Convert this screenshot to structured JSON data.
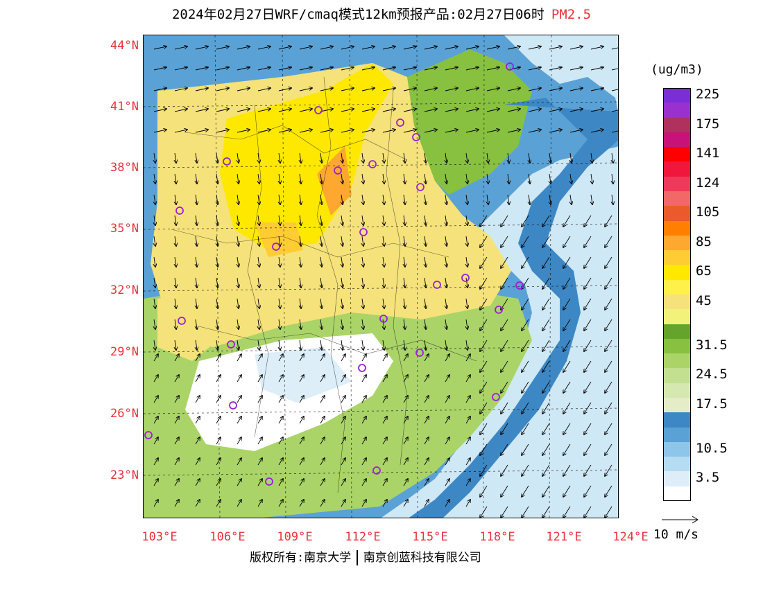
{
  "title": {
    "main": "2024年02月27日WRF/cmaq模式12km预报产品:02月27日06时",
    "pollutant": "PM2.5"
  },
  "map": {
    "lat_labels": [
      "44°N",
      "41°N",
      "38°N",
      "35°N",
      "32°N",
      "29°N",
      "26°N",
      "23°N"
    ],
    "lon_labels": [
      "103°E",
      "106°E",
      "109°E",
      "112°E",
      "115°E",
      "118°E",
      "121°E",
      "124°E"
    ],
    "lat_values": [
      44,
      41,
      38,
      35,
      32,
      29,
      26,
      23
    ],
    "lon_values": [
      103,
      106,
      109,
      112,
      115,
      118,
      121,
      124
    ],
    "lat_range": [
      21.0,
      44.4
    ],
    "lon_range": [
      103.0,
      124.0
    ],
    "stations_icon": "circle-marker-icon",
    "wind_icon": "wind-arrow-icon"
  },
  "legend": {
    "unit": "(ug/m3)",
    "levels": [
      {
        "label": "225",
        "color": "#7b2ed8"
      },
      {
        "label": "",
        "color": "#9b30d0"
      },
      {
        "label": "175",
        "color": "#b0305e"
      },
      {
        "label": "",
        "color": "#c8127a"
      },
      {
        "label": "141",
        "color": "#ff0000"
      },
      {
        "label": "",
        "color": "#f0163c"
      },
      {
        "label": "124",
        "color": "#f0385a"
      },
      {
        "label": "",
        "color": "#f26868"
      },
      {
        "label": "105",
        "color": "#ea5a2a"
      },
      {
        "label": "",
        "color": "#ff8000"
      },
      {
        "label": "85",
        "color": "#ffa830"
      },
      {
        "label": "",
        "color": "#ffcc33"
      },
      {
        "label": "65",
        "color": "#ffe800"
      },
      {
        "label": "",
        "color": "#fff04a"
      },
      {
        "label": "45",
        "color": "#f5e27a"
      },
      {
        "label": "",
        "color": "#f2f27a"
      },
      {
        "label": "",
        "color": "#66a32a"
      },
      {
        "label": "31.5",
        "color": "#88c040"
      },
      {
        "label": "",
        "color": "#aad468"
      },
      {
        "label": "24.5",
        "color": "#c2e090"
      },
      {
        "label": "",
        "color": "#d4e8b0"
      },
      {
        "label": "17.5",
        "color": "#e4ecc8"
      },
      {
        "label": "",
        "color": "#3d88c4"
      },
      {
        "label": "",
        "color": "#5aa2d6"
      },
      {
        "label": "10.5",
        "color": "#8ec6ea"
      },
      {
        "label": "",
        "color": "#b6dcf2"
      },
      {
        "label": "3.5",
        "color": "#ddeef8"
      },
      {
        "label": "",
        "color": "#ffffff"
      }
    ]
  },
  "wind_reference": {
    "label": "10 m/s"
  },
  "copyright": {
    "left": "版权所有:南京大学",
    "right": "南京创蓝科技有限公司"
  }
}
